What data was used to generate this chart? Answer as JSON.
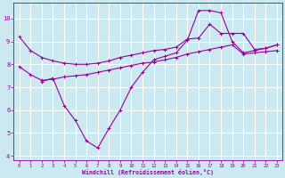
{
  "xlabel": "Windchill (Refroidissement éolien,°C)",
  "bg_color": "#cce8f0",
  "line_color": "#990099",
  "grid_color": "#ffffff",
  "xlim": [
    -0.5,
    23.5
  ],
  "ylim": [
    3.8,
    10.7
  ],
  "yticks": [
    4,
    5,
    6,
    7,
    8,
    9,
    10
  ],
  "xticks": [
    0,
    1,
    2,
    3,
    4,
    5,
    6,
    7,
    8,
    9,
    10,
    11,
    12,
    13,
    14,
    15,
    16,
    17,
    18,
    19,
    20,
    21,
    22,
    23
  ],
  "line1_x": [
    0,
    1,
    2,
    3,
    4,
    5,
    6,
    7,
    8,
    9,
    10,
    11,
    12,
    13,
    14,
    15,
    16,
    17,
    18,
    19,
    20,
    21,
    22,
    23
  ],
  "line1_y": [
    9.2,
    8.6,
    8.3,
    8.15,
    8.05,
    8.0,
    8.0,
    8.05,
    8.15,
    8.3,
    8.4,
    8.5,
    8.6,
    8.65,
    8.75,
    9.1,
    9.15,
    9.75,
    9.35,
    9.35,
    9.35,
    8.65,
    8.7,
    8.85
  ],
  "line2_x": [
    2,
    3,
    4,
    5,
    6,
    7,
    8,
    9,
    10,
    11,
    12,
    13,
    14,
    15,
    16,
    17,
    18,
    19,
    20,
    21,
    22,
    23
  ],
  "line2_y": [
    7.25,
    7.4,
    6.2,
    5.55,
    4.65,
    4.35,
    5.2,
    6.0,
    7.0,
    7.65,
    8.2,
    8.35,
    8.5,
    9.05,
    10.35,
    10.35,
    10.25,
    9.0,
    8.5,
    8.6,
    8.7,
    8.85
  ],
  "line3_x": [
    0,
    1,
    2,
    3,
    4,
    5,
    6,
    7,
    8,
    9,
    10,
    11,
    12,
    13,
    14,
    15,
    16,
    17,
    18,
    19,
    20,
    21,
    22,
    23
  ],
  "line3_y": [
    7.9,
    7.55,
    7.3,
    7.35,
    7.45,
    7.5,
    7.55,
    7.65,
    7.75,
    7.85,
    7.95,
    8.05,
    8.1,
    8.2,
    8.3,
    8.45,
    8.55,
    8.65,
    8.75,
    8.85,
    8.45,
    8.5,
    8.55,
    8.6
  ]
}
